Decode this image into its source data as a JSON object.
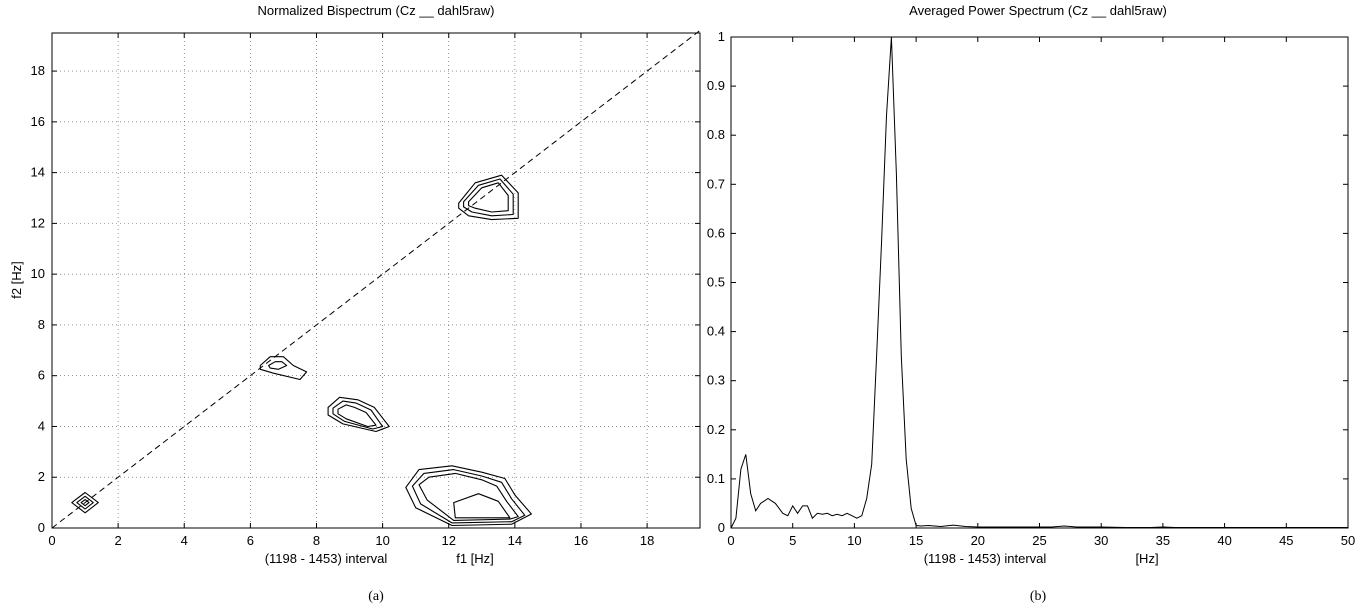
{
  "chart_data": [
    {
      "type": "contour",
      "title": "Normalized Bispectrum (Cz __ dahl5raw)",
      "xlabel_note": "(1198 - 1453) interval",
      "xlabel": "f1 [Hz]",
      "ylabel": "f2 [Hz]",
      "caption": "(a)",
      "xlim": [
        0,
        19.6
      ],
      "ylim": [
        0,
        19.5
      ],
      "xticks": [
        0,
        2,
        4,
        6,
        8,
        10,
        12,
        14,
        16,
        18
      ],
      "yticks": [
        0,
        2,
        4,
        6,
        8,
        10,
        12,
        14,
        16,
        18
      ],
      "grid": true,
      "diagonal_reference": [
        [
          0,
          0
        ],
        [
          19.6,
          19.6
        ]
      ],
      "contours": [
        {
          "name": "peak-1hz",
          "rings": [
            [
              [
                0.6,
                1.0
              ],
              [
                1.0,
                1.4
              ],
              [
                1.4,
                1.0
              ],
              [
                1.0,
                0.6
              ]
            ],
            [
              [
                0.75,
                1.0
              ],
              [
                1.0,
                1.25
              ],
              [
                1.25,
                1.0
              ],
              [
                1.0,
                0.75
              ]
            ],
            [
              [
                0.88,
                1.0
              ],
              [
                1.0,
                1.12
              ],
              [
                1.12,
                1.0
              ],
              [
                1.0,
                0.88
              ]
            ]
          ]
        },
        {
          "name": "peak-6.5hz",
          "rings": [
            [
              [
                6.3,
                6.4
              ],
              [
                6.6,
                6.75
              ],
              [
                7.0,
                6.75
              ],
              [
                7.3,
                6.4
              ],
              [
                7.7,
                6.15
              ],
              [
                7.5,
                5.85
              ],
              [
                6.7,
                6.1
              ],
              [
                6.3,
                6.25
              ]
            ],
            [
              [
                6.55,
                6.4
              ],
              [
                6.75,
                6.55
              ],
              [
                6.95,
                6.55
              ],
              [
                7.1,
                6.4
              ],
              [
                6.85,
                6.25
              ],
              [
                6.6,
                6.3
              ]
            ]
          ]
        },
        {
          "name": "peak-9hz",
          "rings": [
            [
              [
                8.35,
                4.75
              ],
              [
                8.7,
                5.15
              ],
              [
                9.25,
                5.05
              ],
              [
                9.75,
                4.75
              ],
              [
                10.2,
                4.0
              ],
              [
                9.8,
                3.8
              ],
              [
                8.8,
                4.1
              ],
              [
                8.35,
                4.45
              ]
            ],
            [
              [
                8.5,
                4.72
              ],
              [
                8.8,
                5.0
              ],
              [
                9.2,
                4.92
              ],
              [
                9.65,
                4.65
              ],
              [
                10.0,
                4.0
              ],
              [
                9.7,
                3.9
              ],
              [
                8.85,
                4.2
              ],
              [
                8.5,
                4.5
              ]
            ],
            [
              [
                8.65,
                4.68
              ],
              [
                8.9,
                4.85
              ],
              [
                9.15,
                4.75
              ],
              [
                9.5,
                4.55
              ],
              [
                9.8,
                4.05
              ],
              [
                9.55,
                4.0
              ],
              [
                8.9,
                4.3
              ],
              [
                8.65,
                4.5
              ]
            ]
          ]
        },
        {
          "name": "peak-13hz-diagonal",
          "rings": [
            [
              [
                12.3,
                12.8
              ],
              [
                12.8,
                13.6
              ],
              [
                13.6,
                13.9
              ],
              [
                14.1,
                13.2
              ],
              [
                14.1,
                12.2
              ],
              [
                13.3,
                12.15
              ],
              [
                12.6,
                12.3
              ],
              [
                12.3,
                12.6
              ]
            ],
            [
              [
                12.45,
                12.85
              ],
              [
                12.9,
                13.5
              ],
              [
                13.55,
                13.75
              ],
              [
                13.95,
                13.15
              ],
              [
                13.95,
                12.35
              ],
              [
                13.3,
                12.3
              ],
              [
                12.7,
                12.45
              ],
              [
                12.45,
                12.65
              ]
            ],
            [
              [
                12.6,
                12.85
              ],
              [
                13.0,
                13.4
              ],
              [
                13.5,
                13.6
              ],
              [
                13.8,
                13.1
              ],
              [
                13.8,
                12.5
              ],
              [
                13.3,
                12.45
              ],
              [
                12.8,
                12.6
              ],
              [
                12.6,
                12.7
              ]
            ]
          ]
        },
        {
          "name": "peak-13hz-low",
          "rings": [
            [
              [
                10.7,
                1.6
              ],
              [
                11.1,
                2.3
              ],
              [
                12.1,
                2.45
              ],
              [
                13.0,
                2.2
              ],
              [
                13.7,
                1.95
              ],
              [
                14.0,
                1.3
              ],
              [
                14.5,
                0.55
              ],
              [
                13.9,
                0.15
              ],
              [
                12.1,
                0.1
              ],
              [
                11.0,
                0.8
              ]
            ],
            [
              [
                10.9,
                1.65
              ],
              [
                11.25,
                2.15
              ],
              [
                12.15,
                2.3
              ],
              [
                13.0,
                2.05
              ],
              [
                13.6,
                1.8
              ],
              [
                13.9,
                1.15
              ],
              [
                14.3,
                0.5
              ],
              [
                13.9,
                0.25
              ],
              [
                12.1,
                0.2
              ],
              [
                11.15,
                0.95
              ]
            ],
            [
              [
                11.1,
                1.7
              ],
              [
                11.4,
                2.0
              ],
              [
                12.2,
                2.15
              ],
              [
                13.0,
                1.9
              ],
              [
                13.45,
                1.65
              ],
              [
                13.75,
                1.05
              ],
              [
                14.1,
                0.45
              ],
              [
                13.85,
                0.35
              ],
              [
                12.15,
                0.3
              ],
              [
                11.35,
                1.1
              ]
            ],
            [
              [
                12.15,
                1.0
              ],
              [
                12.9,
                1.35
              ],
              [
                13.5,
                1.05
              ],
              [
                13.85,
                0.4
              ],
              [
                12.2,
                0.4
              ]
            ]
          ]
        }
      ]
    },
    {
      "type": "line",
      "title": "Averaged Power Spectrum (Cz __ dahl5raw)",
      "xlabel_note": "(1198 - 1453) interval",
      "xlabel": "[Hz]",
      "ylabel": "",
      "caption": "(b)",
      "xlim": [
        0,
        50
      ],
      "ylim": [
        0,
        1
      ],
      "xticks": [
        0,
        5,
        10,
        15,
        20,
        25,
        30,
        35,
        40,
        45,
        50
      ],
      "yticks": [
        0,
        0.1,
        0.2,
        0.3,
        0.4,
        0.5,
        0.6,
        0.7,
        0.8,
        0.9,
        1
      ],
      "grid": false,
      "x": [
        0,
        0.4,
        0.8,
        1.2,
        1.6,
        2.0,
        2.4,
        3.0,
        3.6,
        4.2,
        4.6,
        5.0,
        5.4,
        5.8,
        6.2,
        6.6,
        7.0,
        7.4,
        7.8,
        8.2,
        8.6,
        9.0,
        9.4,
        9.8,
        10.2,
        10.6,
        11.0,
        11.4,
        11.8,
        12.2,
        12.6,
        13.0,
        13.4,
        13.8,
        14.2,
        14.6,
        15.0,
        15.4,
        16,
        17,
        18,
        19,
        20,
        22,
        24,
        26,
        27,
        28,
        30,
        32,
        34,
        35,
        36,
        38,
        40,
        42,
        45,
        48,
        50
      ],
      "y": [
        0,
        0.02,
        0.12,
        0.15,
        0.07,
        0.035,
        0.05,
        0.06,
        0.05,
        0.03,
        0.025,
        0.045,
        0.03,
        0.045,
        0.045,
        0.02,
        0.03,
        0.028,
        0.03,
        0.025,
        0.028,
        0.025,
        0.03,
        0.025,
        0.02,
        0.025,
        0.06,
        0.13,
        0.35,
        0.58,
        0.84,
        1.0,
        0.72,
        0.35,
        0.14,
        0.04,
        0.005,
        0.004,
        0.005,
        0.003,
        0.006,
        0.003,
        0.002,
        0.002,
        0.002,
        0.002,
        0.004,
        0.002,
        0.002,
        0.001,
        0.001,
        0.002,
        0.001,
        0.001,
        0.001,
        0.001,
        0.001,
        0.001,
        0.001
      ]
    }
  ]
}
